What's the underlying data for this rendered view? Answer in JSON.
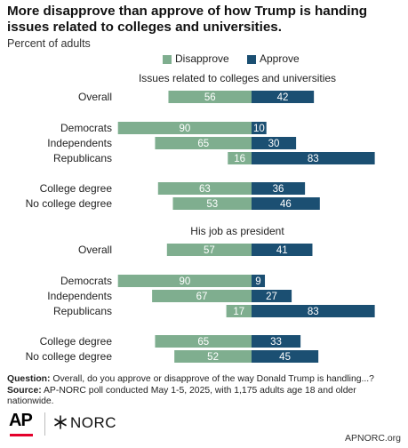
{
  "title": "More disapprove than approve of how Trump is handing issues related to colleges and universities.",
  "subtitle": "Percent of adults",
  "legend": {
    "disapprove": "Disapprove",
    "approve": "Approve"
  },
  "colors": {
    "disapprove": "#7fae8f",
    "approve": "#1b4f72"
  },
  "chart_data": [
    {
      "type": "bar",
      "orientation": "horizontal-diverging",
      "title": "Issues related to colleges and universities",
      "categories": [
        "Overall",
        "Democrats",
        "Independents",
        "Republicans",
        "College degree",
        "No college degree"
      ],
      "series": [
        {
          "name": "Disapprove",
          "values": [
            56,
            90,
            65,
            16,
            63,
            53
          ]
        },
        {
          "name": "Approve",
          "values": [
            42,
            10,
            30,
            83,
            36,
            46
          ]
        }
      ]
    },
    {
      "type": "bar",
      "orientation": "horizontal-diverging",
      "title": "His job as president",
      "categories": [
        "Overall",
        "Democrats",
        "Independents",
        "Republicans",
        "College degree",
        "No college degree"
      ],
      "series": [
        {
          "name": "Disapprove",
          "values": [
            57,
            90,
            67,
            17,
            65,
            52
          ]
        },
        {
          "name": "Approve",
          "values": [
            41,
            9,
            27,
            83,
            33,
            45
          ]
        }
      ]
    }
  ],
  "footer": {
    "question_label": "Question:",
    "question_text": " Overall, do you approve or disapprove of the way Donald Trump is handling...?",
    "source_label": "Source:",
    "source_text": " AP-NORC poll conducted May 1-5, 2025, with 1,175 adults age 18 and older nationwide."
  },
  "logos": {
    "ap": "AP",
    "norc": "NORC"
  },
  "site": "APNORC.org"
}
